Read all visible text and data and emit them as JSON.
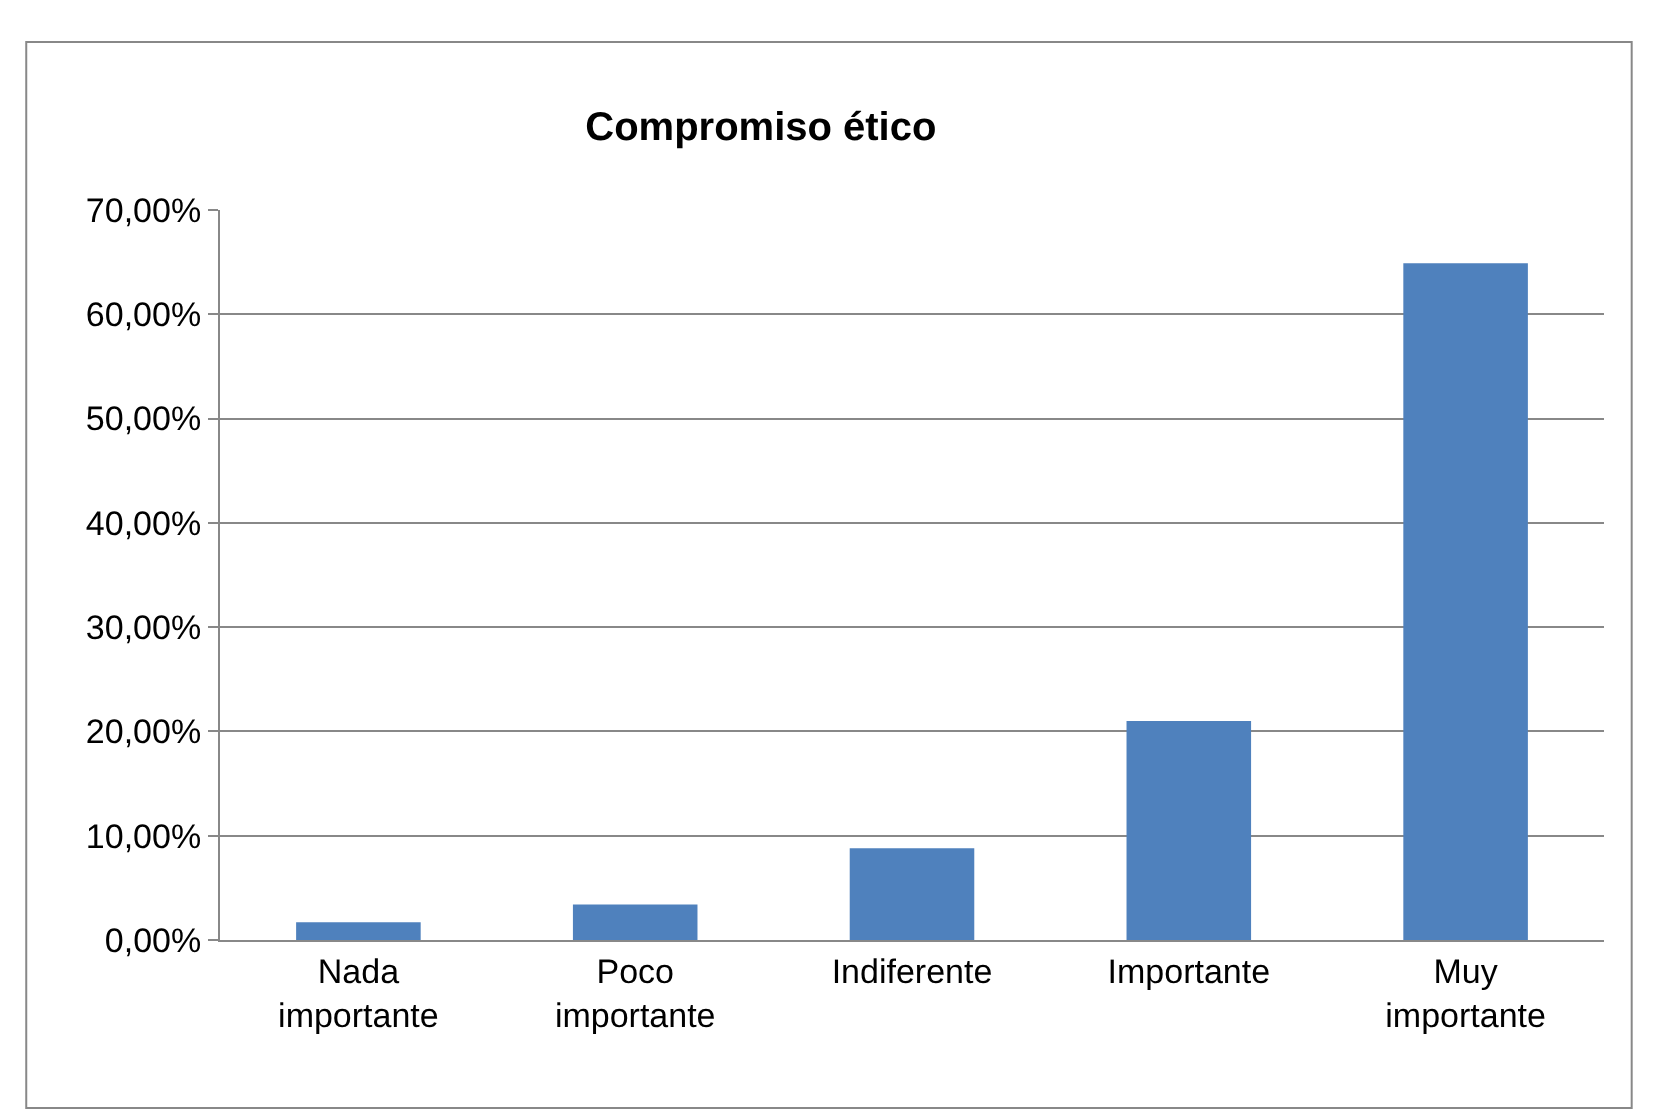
{
  "chart_data": {
    "type": "bar",
    "title": "Compromiso ético",
    "categories": [
      "Nada importante",
      "Poco importante",
      "Indiferente",
      "Importante",
      "Muy importante"
    ],
    "values": [
      1.7,
      3.4,
      8.8,
      21.0,
      64.9
    ],
    "color": "#4f81bd",
    "ylim": [
      0,
      70
    ],
    "yticks": [
      {
        "value": 0,
        "label": "0,00%"
      },
      {
        "value": 10,
        "label": "10,00%"
      },
      {
        "value": 20,
        "label": "20,00%"
      },
      {
        "value": 30,
        "label": "30,00%"
      },
      {
        "value": 40,
        "label": "40,00%"
      },
      {
        "value": 50,
        "label": "50,00%"
      },
      {
        "value": 60,
        "label": "60,00%"
      },
      {
        "value": 70,
        "label": "70,00%"
      }
    ],
    "grid": "y",
    "legend": false
  }
}
